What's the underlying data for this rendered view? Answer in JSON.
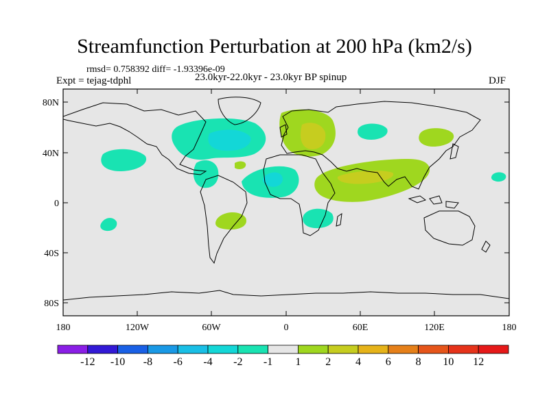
{
  "title": "Streamfunction Perturbation at 200 hPa (km2/s)",
  "stats": "rmsd= 0.758392 diff= -1.93396e-09",
  "experiment": "Expt = tejag-tdphl",
  "time_range": "23.0kyr-22.0kyr - 23.0kyr BP spinup",
  "season": "DJF",
  "map": {
    "lat_ticks": [
      "80N",
      "40N",
      "0",
      "40S",
      "80S"
    ],
    "lon_ticks": [
      "180",
      "120W",
      "60W",
      "0",
      "60E",
      "120E",
      "180"
    ],
    "background_color": "#e6e6e6",
    "anomalies": [
      {
        "name": "north-atlantic-canada-low",
        "value": -2,
        "color": "#19e3b2"
      },
      {
        "name": "north-atlantic-core",
        "value": -4,
        "color": "#13d7d7"
      },
      {
        "name": "north-pacific-low",
        "value": -2,
        "color": "#19e3b2"
      },
      {
        "name": "caribbean-low",
        "value": -2,
        "color": "#19e3b2"
      },
      {
        "name": "mid-atlantic-small-high",
        "value": 2,
        "color": "#9fd71f"
      },
      {
        "name": "tropical-atlantic-low",
        "value": -2,
        "color": "#19e3b2"
      },
      {
        "name": "tropical-atlantic-core",
        "value": -4,
        "color": "#13d7d7"
      },
      {
        "name": "south-america-high",
        "value": 2,
        "color": "#9fd71f"
      },
      {
        "name": "south-pacific-low",
        "value": -2,
        "color": "#19e3b2"
      },
      {
        "name": "east-africa-low",
        "value": -2,
        "color": "#19e3b2"
      },
      {
        "name": "europe-high",
        "value": 2,
        "color": "#9fd71f"
      },
      {
        "name": "europe-core",
        "value": 4,
        "color": "#c6cd1f"
      },
      {
        "name": "west-siberia-low",
        "value": -2,
        "color": "#19e3b2"
      },
      {
        "name": "east-asia-high",
        "value": 2,
        "color": "#9fd71f"
      },
      {
        "name": "south-asia-high",
        "value": 2,
        "color": "#9fd71f"
      },
      {
        "name": "south-asia-core",
        "value": 4,
        "color": "#c6cd1f"
      },
      {
        "name": "west-pacific-low",
        "value": -2,
        "color": "#19e3b2"
      }
    ]
  },
  "colorbar": {
    "labels": [
      "-12",
      "-10",
      "-8",
      "-6",
      "-4",
      "-2",
      "-1",
      "1",
      "2",
      "4",
      "6",
      "8",
      "10",
      "12"
    ],
    "colors": [
      "#8a1ee6",
      "#3219d6",
      "#1960e6",
      "#1999e6",
      "#19bfe6",
      "#13d7d7",
      "#19e3b2",
      "#e6e6e6",
      "#9fd71f",
      "#c6cd1f",
      "#e6b319",
      "#e68019",
      "#e6551a",
      "#e6331a",
      "#e61919"
    ]
  }
}
